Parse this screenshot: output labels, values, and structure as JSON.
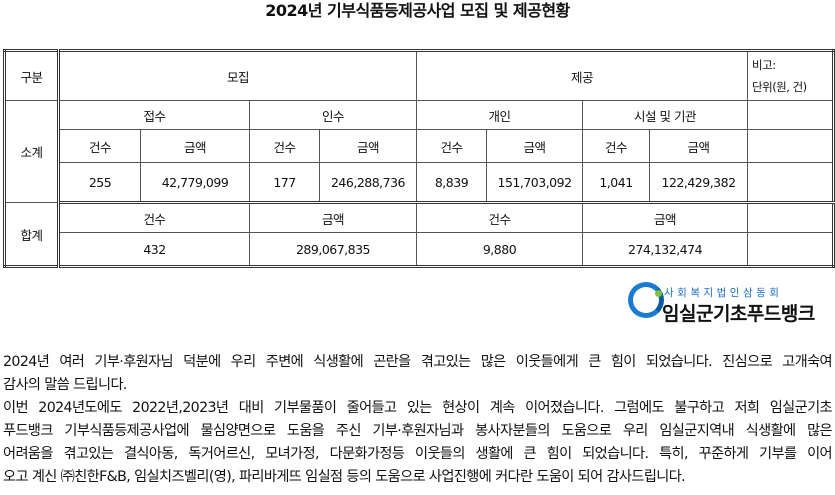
{
  "title": "2024년 기부식품등제공사업 모집 및 제공현황",
  "table": {
    "col_gubun": "구분",
    "col_mojip": "모집",
    "col_jegong": "제공",
    "bigo_line1": "비고:",
    "bigo_line2": "단위(원, 건)",
    "sub_jeopsu": "접수",
    "sub_insu": "인수",
    "sub_gaein": "개인",
    "sub_siseol": "시설 및 기관",
    "row_sogye": "소계",
    "row_hapgye": "합계",
    "count_label": "건수",
    "amount_label": "금액",
    "sogye_values": [
      "255",
      "42,779,099",
      "177",
      "246,288,736",
      "8,839",
      "151,703,092",
      "1,041",
      "122,429,382"
    ],
    "hapgye_values": [
      "432",
      "289,067,835",
      "9,880",
      "274,132,474"
    ]
  },
  "logo": {
    "subtitle": "사회복지법인삼동회",
    "name": "임실군기초푸드뱅크",
    "ring_color": "#1b7bd0",
    "dot_color": "#7cc23e"
  },
  "paragraph_lines": [
    "2024년 여러 기부·후원자님 덕분에 우리 주변에 식생활에 곤란을 겪고있는 많은 이웃들에게 큰 힘이 되었습니다. 진심으로 고개숙여",
    "감사의 말씀 드립니다.",
    "이번 2024년도에도 2022년,2023년 대비 기부물품이 줄어들고 있는 현상이 계속 이어졌습니다. 그럼에도 불구하고 저희 임실군기초",
    "푸드뱅크 기부식품등제공사업에 물심양면으로 도움을 주신 기부·후원자님과 봉사자분들의 도움으로 우리 임실군지역내 식생활에 많은",
    "어려움을 겪고있는 결식아동, 독거어르신, 모녀가정, 다문화가정등 이웃들의 생활에 큰 힘이 되었습니다. 특히, 꾸준하게 기부를 이어",
    "오고 계신 ㈜친한F&B, 임실치즈벨리(영), 파리바게뜨 임실점 등의 도움으로 사업진행에 커다란 도움이 되어 감사드립니다."
  ]
}
